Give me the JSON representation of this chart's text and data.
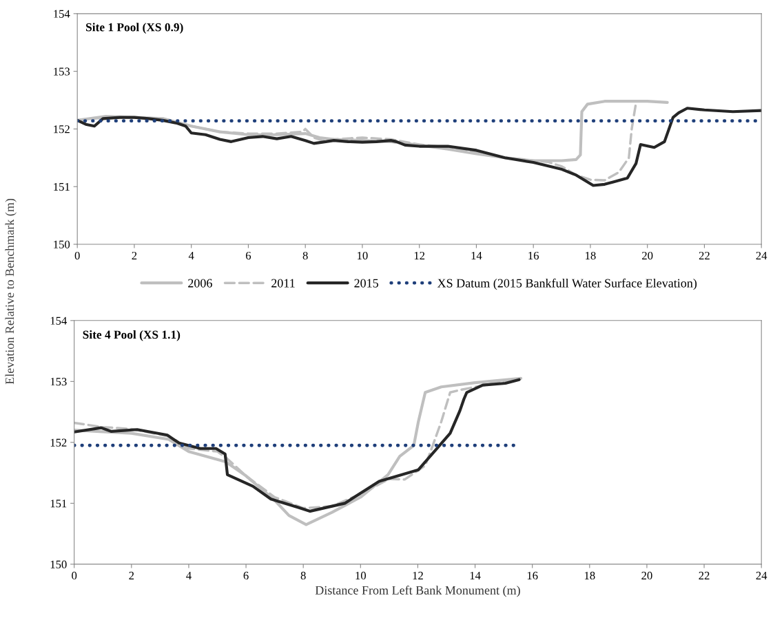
{
  "chart_data": [
    {
      "type": "line",
      "title": "Site 1 Pool (XS 0.9)",
      "ylabel": "Elevation Relative to Benchmark (m)",
      "xlim": [
        0,
        24
      ],
      "xticks": [
        0,
        2,
        4,
        6,
        8,
        10,
        12,
        14,
        16,
        18,
        20,
        22,
        24
      ],
      "ylim": [
        150,
        154
      ],
      "yticks": [
        150,
        151,
        152,
        153,
        154
      ],
      "grid": false,
      "legend": "bottom",
      "series": [
        {
          "name": "2006",
          "color": "#bfbfbf",
          "line_style": "solid",
          "x": [
            0,
            1,
            2,
            3,
            4,
            5,
            6,
            7,
            8,
            8.5,
            9,
            10,
            11,
            12,
            13,
            14,
            15,
            16,
            17,
            17.5,
            17.65,
            17.7,
            17.9,
            18.5,
            20,
            20.7
          ],
          "values": [
            152.15,
            152.22,
            152.2,
            152.18,
            152.05,
            151.95,
            151.9,
            151.9,
            151.92,
            151.85,
            151.82,
            151.8,
            151.78,
            151.72,
            151.65,
            151.57,
            151.5,
            151.45,
            151.45,
            151.47,
            151.55,
            152.3,
            152.43,
            152.48,
            152.48,
            152.46
          ]
        },
        {
          "name": "2011",
          "color": "#bfbfbf",
          "line_style": "dashed",
          "x": [
            0,
            1,
            2,
            3,
            4,
            5,
            6,
            7,
            7.9,
            8,
            8.3,
            8.6,
            9,
            10,
            11,
            12,
            13,
            14,
            15,
            16,
            16.5,
            17,
            17.5,
            18,
            18.5,
            19,
            19.35,
            19.45,
            19.6
          ],
          "values": [
            152.15,
            152.2,
            152.2,
            152.18,
            152.05,
            151.95,
            151.92,
            151.92,
            151.95,
            152.0,
            151.85,
            151.8,
            151.82,
            151.85,
            151.82,
            151.73,
            151.68,
            151.6,
            151.5,
            151.45,
            151.43,
            151.35,
            151.2,
            151.12,
            151.11,
            151.25,
            151.5,
            152.0,
            152.45
          ]
        },
        {
          "name": "2015",
          "color": "#262626",
          "line_style": "solid",
          "x": [
            0,
            0.3,
            0.6,
            0.9,
            1.5,
            2,
            2.5,
            3,
            3.5,
            3.8,
            4,
            4.5,
            5,
            5.4,
            6,
            6.5,
            7,
            7.5,
            8,
            8.3,
            8.6,
            9,
            9.5,
            10,
            10.5,
            11,
            11.2,
            11.5,
            12,
            12.5,
            13,
            14,
            15,
            16,
            17,
            17.5,
            18.1,
            18.5,
            18.8,
            19.3,
            19.6,
            19.76,
            20.24,
            20.6,
            20.9,
            21.1,
            21.4,
            22,
            23,
            24
          ],
          "values": [
            152.15,
            152.08,
            152.05,
            152.18,
            152.2,
            152.2,
            152.18,
            152.15,
            152.1,
            152.05,
            151.93,
            151.9,
            151.82,
            151.78,
            151.85,
            151.87,
            151.83,
            151.87,
            151.8,
            151.75,
            151.77,
            151.8,
            151.78,
            151.77,
            151.78,
            151.8,
            151.78,
            151.72,
            151.7,
            151.7,
            151.7,
            151.63,
            151.5,
            151.42,
            151.3,
            151.2,
            151.02,
            151.04,
            151.08,
            151.15,
            151.4,
            151.73,
            151.68,
            151.78,
            152.2,
            152.28,
            152.36,
            152.33,
            152.3,
            152.32
          ]
        },
        {
          "name": "XS Datum (2015 Bankfull Water Surface Elevation)",
          "color": "#1f3f7a",
          "line_style": "dotted",
          "x": [
            0,
            24
          ],
          "values": [
            152.14,
            152.14
          ]
        }
      ]
    },
    {
      "type": "line",
      "title": "Site 4 Pool (XS 1.1)",
      "xlabel": "Distance From Left Bank Monument (m)",
      "xlim": [
        0,
        24
      ],
      "xticks": [
        0,
        2,
        4,
        6,
        8,
        10,
        12,
        14,
        16,
        18,
        20,
        22,
        24
      ],
      "ylim": [
        150,
        154
      ],
      "yticks": [
        150,
        151,
        152,
        153,
        154
      ],
      "grid": false,
      "series": [
        {
          "color": "#bfbfbf",
          "line_style": "solid",
          "x": [
            0,
            2,
            3.3,
            4,
            5,
            5.3,
            6,
            7,
            7.5,
            8.1,
            9,
            10,
            10.96,
            11.37,
            11.86,
            12.02,
            12.26,
            12.82,
            14,
            15.6
          ],
          "values": [
            152.2,
            152.15,
            152.05,
            151.85,
            151.72,
            151.68,
            151.45,
            151.05,
            150.8,
            150.65,
            150.85,
            151.1,
            151.47,
            151.77,
            151.95,
            152.34,
            152.82,
            152.91,
            152.98,
            153.05
          ]
        },
        {
          "color": "#bfbfbf",
          "line_style": "dashed",
          "x": [
            0,
            1,
            2,
            3.3,
            4,
            5,
            5.3,
            6,
            7,
            8,
            9,
            10,
            11,
            11.54,
            12.26,
            12.5,
            12.82,
            13.13,
            13.47,
            15,
            15.6
          ],
          "values": [
            152.32,
            152.25,
            152.22,
            152.1,
            151.9,
            151.85,
            151.75,
            151.45,
            151.1,
            150.92,
            150.95,
            151.15,
            151.4,
            151.39,
            151.62,
            151.92,
            152.34,
            152.82,
            152.86,
            153.0,
            153.05
          ]
        },
        {
          "color": "#262626",
          "line_style": "solid",
          "x": [
            0,
            0.94,
            1.3,
            2.2,
            3.25,
            3.66,
            4.4,
            4.95,
            5.27,
            5.35,
            6.24,
            6.87,
            7.83,
            8.24,
            9.45,
            10.65,
            12.02,
            12.65,
            13.13,
            13.47,
            13.61,
            13.71,
            14.27,
            15.06,
            15.54
          ],
          "values": [
            152.17,
            152.24,
            152.18,
            152.21,
            152.12,
            151.99,
            151.9,
            151.9,
            151.81,
            151.47,
            151.28,
            151.07,
            150.93,
            150.87,
            151.0,
            151.36,
            151.55,
            151.89,
            152.15,
            152.52,
            152.71,
            152.82,
            152.94,
            152.97,
            153.03
          ]
        },
        {
          "color": "#1f3f7a",
          "line_style": "dotted",
          "x": [
            0,
            15.35
          ],
          "values": [
            151.95,
            151.95
          ]
        }
      ]
    }
  ]
}
